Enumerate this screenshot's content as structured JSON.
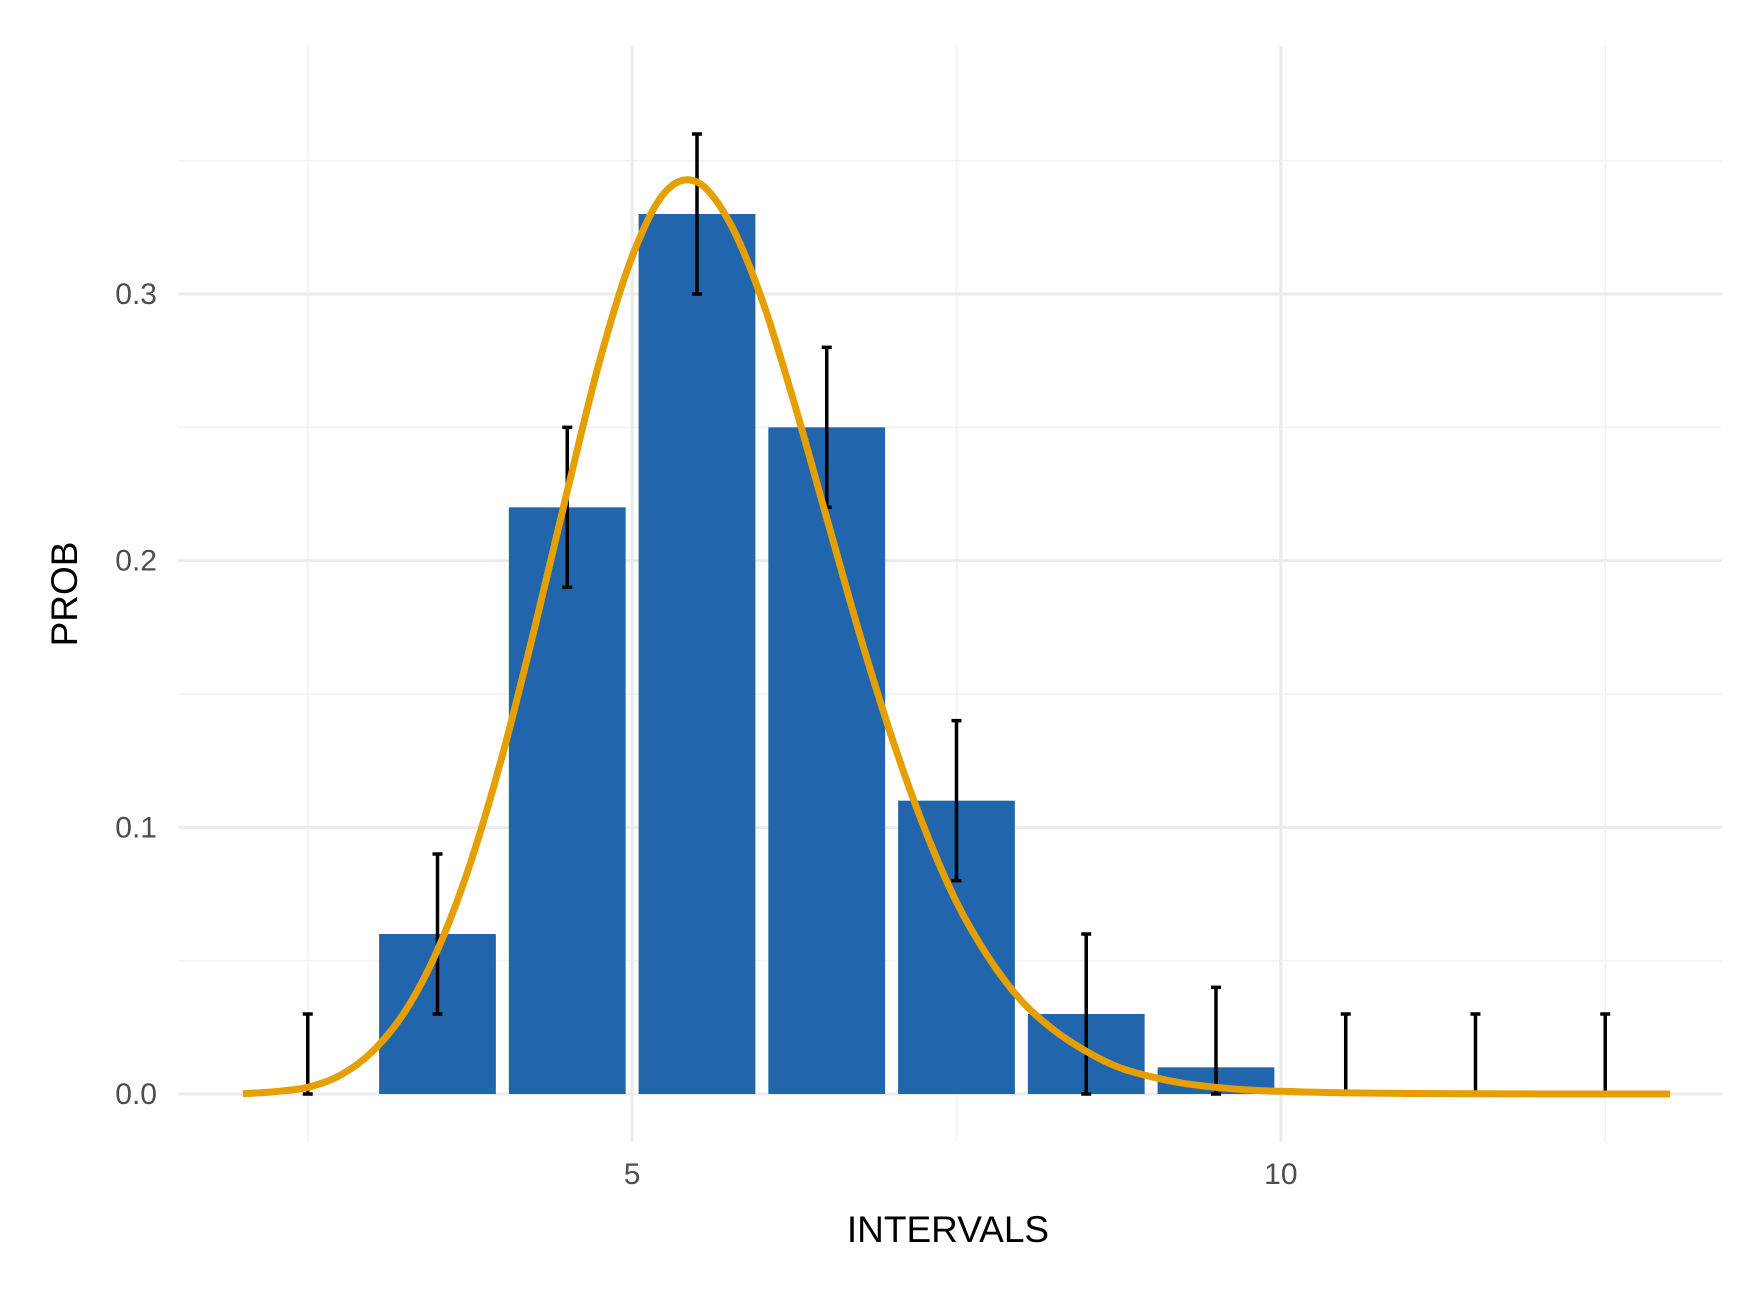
{
  "chart_data": {
    "type": "bar",
    "xlabel": "INTERVALS",
    "ylabel": "PROB",
    "xlim": [
      1.5,
      13.4
    ],
    "ylim": [
      -0.018,
      0.393
    ],
    "x_ticks": [
      5,
      10
    ],
    "y_ticks": [
      0.0,
      0.1,
      0.2,
      0.3
    ],
    "y_tick_labels": [
      "0.0",
      "0.1",
      "0.2",
      "0.3"
    ],
    "x_minor_gridlines": [
      2.5,
      7.5,
      12.5
    ],
    "y_minor_gridlines": [
      0.05,
      0.15,
      0.25,
      0.35
    ],
    "grid": true,
    "bar_width": 0.9,
    "bars": {
      "x": [
        2.5,
        3.5,
        4.5,
        5.5,
        6.5,
        7.5,
        8.5,
        9.5,
        10.5,
        11.5,
        12.5
      ],
      "values": [
        0.0,
        0.06,
        0.22,
        0.33,
        0.25,
        0.11,
        0.03,
        0.01,
        0.0,
        0.0,
        0.0
      ],
      "color": "#2166ac"
    },
    "error_bars": {
      "x": [
        2.5,
        3.5,
        4.5,
        5.5,
        6.5,
        7.5,
        8.5,
        9.5,
        10.5,
        11.5,
        12.5
      ],
      "lower": [
        0.0,
        0.03,
        0.19,
        0.3,
        0.22,
        0.08,
        0.0,
        0.0,
        0.0,
        0.0,
        0.0
      ],
      "upper": [
        0.03,
        0.09,
        0.25,
        0.36,
        0.28,
        0.14,
        0.06,
        0.04,
        0.03,
        0.03,
        0.03
      ],
      "color": "#000000"
    },
    "curve": {
      "type": "line",
      "color": "#e69f00",
      "x": [
        2.0,
        2.25,
        2.5,
        2.75,
        3.0,
        3.25,
        3.5,
        3.75,
        4.0,
        4.25,
        4.5,
        4.75,
        5.0,
        5.25,
        5.5,
        5.75,
        6.0,
        6.25,
        6.5,
        6.75,
        7.0,
        7.25,
        7.5,
        7.75,
        8.0,
        8.25,
        8.5,
        8.75,
        9.0,
        9.25,
        9.5,
        9.75,
        10.0,
        10.5,
        11.0,
        11.5,
        12.0,
        12.5,
        13.0
      ],
      "y": [
        0.0001,
        0.0009,
        0.0025,
        0.007,
        0.016,
        0.031,
        0.054,
        0.086,
        0.127,
        0.175,
        0.226,
        0.275,
        0.314,
        0.338,
        0.342,
        0.327,
        0.298,
        0.259,
        0.216,
        0.173,
        0.134,
        0.1,
        0.072,
        0.051,
        0.035,
        0.024,
        0.016,
        0.01,
        0.0065,
        0.004,
        0.0025,
        0.0015,
        0.001,
        0.0004,
        0.0002,
        0.0001,
        0.0,
        0.0,
        0.0
      ]
    }
  }
}
